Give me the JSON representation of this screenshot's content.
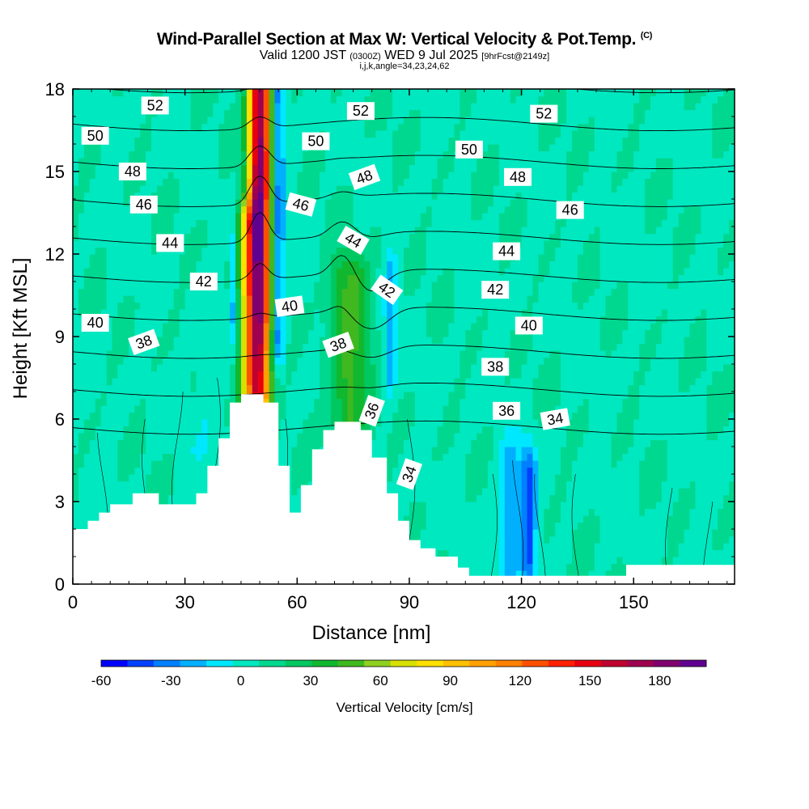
{
  "title": {
    "main": "Wind-Parallel Section at Max W: Vertical Velocity & Pot.Temp.",
    "main_mark": "(C)",
    "valid_prefix": "Valid 1200 JST",
    "valid_utc": "(0300Z)",
    "valid_date": "WED 9 Jul 2025",
    "forecast": "[9hrFcst@2149z]",
    "indices": "i,j,k,angle=34,23,24,62"
  },
  "chart_data": {
    "type": "heatmap",
    "xlabel": "Distance [nm]",
    "ylabel": "Height [Kft MSL]",
    "xlim": [
      0,
      177
    ],
    "ylim": [
      0,
      18
    ],
    "x_ticks": [
      0,
      30,
      60,
      90,
      120,
      150
    ],
    "y_ticks": [
      0,
      3,
      6,
      9,
      12,
      15,
      18
    ],
    "grid": false,
    "colorbar": {
      "label": "Vertical Velocity [cm/s]",
      "placement": "bottom",
      "range": [
        -60,
        200
      ],
      "tick_values": [
        -60,
        -30,
        0,
        30,
        60,
        90,
        120,
        150,
        180
      ],
      "colors": [
        "#0000ff",
        "#0040ff",
        "#0080ff",
        "#00b0ff",
        "#00e8ff",
        "#00e8c0",
        "#00d890",
        "#00c860",
        "#10b830",
        "#40b820",
        "#90d020",
        "#d8e000",
        "#ffe000",
        "#ffc000",
        "#ffa000",
        "#ff8000",
        "#ff5000",
        "#ff2000",
        "#e80010",
        "#c00030",
        "#a00050",
        "#800070",
        "#600090"
      ]
    },
    "terrain": [
      [
        0,
        2
      ],
      [
        4,
        2
      ],
      [
        4,
        2.3
      ],
      [
        7,
        2.3
      ],
      [
        7,
        2.6
      ],
      [
        10,
        2.6
      ],
      [
        10,
        2.9
      ],
      [
        16,
        2.9
      ],
      [
        16,
        3.3
      ],
      [
        23,
        3.3
      ],
      [
        23,
        2.9
      ],
      [
        33,
        2.9
      ],
      [
        33,
        3.3
      ],
      [
        36,
        3.3
      ],
      [
        36,
        4.3
      ],
      [
        39,
        4.3
      ],
      [
        39,
        5.3
      ],
      [
        42,
        5.3
      ],
      [
        42,
        6.6
      ],
      [
        45,
        6.6
      ],
      [
        45,
        6.9
      ],
      [
        51,
        6.9
      ],
      [
        51,
        6.6
      ],
      [
        55,
        6.6
      ],
      [
        55,
        4.3
      ],
      [
        58,
        4.3
      ],
      [
        58,
        2.6
      ],
      [
        61,
        2.6
      ],
      [
        61,
        3.6
      ],
      [
        64,
        3.6
      ],
      [
        64,
        4.9
      ],
      [
        67,
        4.9
      ],
      [
        67,
        5.6
      ],
      [
        70,
        5.6
      ],
      [
        70,
        5.9
      ],
      [
        77,
        5.9
      ],
      [
        77,
        5.6
      ],
      [
        80,
        5.6
      ],
      [
        80,
        4.6
      ],
      [
        84,
        4.6
      ],
      [
        84,
        3.3
      ],
      [
        87,
        3.3
      ],
      [
        87,
        2.3
      ],
      [
        90,
        2.3
      ],
      [
        90,
        1.6
      ],
      [
        93,
        1.6
      ],
      [
        93,
        1.3
      ],
      [
        97,
        1.3
      ],
      [
        97,
        1.0
      ],
      [
        103,
        1.0
      ],
      [
        103,
        0.6
      ],
      [
        106,
        0.6
      ],
      [
        106,
        0.3
      ],
      [
        148,
        0.3
      ],
      [
        148,
        0.7
      ],
      [
        177,
        0.7
      ],
      [
        177,
        0
      ],
      [
        0,
        0
      ]
    ],
    "w_field": {
      "units": "cm/s",
      "features": [
        {
          "name": "main-updraft",
          "x": 50,
          "x_halfwidth": 3,
          "y_range": [
            7,
            18
          ],
          "max": 175
        },
        {
          "name": "updraft-flank",
          "x": 47,
          "x_halfwidth": 3,
          "y_range": [
            7,
            13
          ],
          "max": 60
        },
        {
          "name": "downdraft-east",
          "x": 55,
          "x_halfwidth": 1.5,
          "y_range": [
            9,
            18
          ],
          "min": -45
        },
        {
          "name": "downdraft-west",
          "x": 43,
          "x_halfwidth": 1,
          "y_range": [
            10,
            12
          ],
          "min": -30
        },
        {
          "name": "secondary-updraft",
          "x": 74,
          "x_halfwidth": 5,
          "y_range": [
            6,
            11
          ],
          "max": 40
        },
        {
          "name": "downdraft-cell",
          "x": 117,
          "x_halfwidth": 3,
          "y_range": [
            1,
            4
          ],
          "min": -30
        },
        {
          "name": "downdraft-cell",
          "x": 122,
          "x_halfwidth": 2,
          "y_range": [
            1,
            4
          ],
          "min": -45
        },
        {
          "name": "downdraft-slant",
          "x": 85,
          "x_halfwidth": 1.5,
          "y_range": [
            8,
            11
          ],
          "min": -30
        },
        {
          "name": "low-level-sink",
          "x": 37,
          "x_halfwidth": 5,
          "y_range": [
            4,
            8
          ],
          "min": -8
        }
      ]
    },
    "theta_contours": [
      {
        "value": 34,
        "label": "34"
      },
      {
        "value": 36,
        "label": "36"
      },
      {
        "value": 38,
        "label": "38"
      },
      {
        "value": 40,
        "label": "40"
      },
      {
        "value": 42,
        "label": "42"
      },
      {
        "value": 44,
        "label": "44"
      },
      {
        "value": 46,
        "label": "46"
      },
      {
        "value": 48,
        "label": "48"
      },
      {
        "value": 50,
        "label": "50"
      },
      {
        "value": 52,
        "label": "52"
      }
    ],
    "contour_labels": [
      {
        "text": "52",
        "x": 22,
        "y": 17.4,
        "angle": 0
      },
      {
        "text": "52",
        "x": 77,
        "y": 17.2,
        "angle": 0
      },
      {
        "text": "52",
        "x": 126,
        "y": 17.1,
        "angle": 0
      },
      {
        "text": "50",
        "x": 6,
        "y": 16.3,
        "angle": 0
      },
      {
        "text": "50",
        "x": 65,
        "y": 16.1,
        "angle": 0
      },
      {
        "text": "50",
        "x": 106,
        "y": 15.8,
        "angle": 0
      },
      {
        "text": "48",
        "x": 16,
        "y": 15.0,
        "angle": 0
      },
      {
        "text": "48",
        "x": 78,
        "y": 14.8,
        "angle": -20
      },
      {
        "text": "48",
        "x": 119,
        "y": 14.8,
        "angle": 0
      },
      {
        "text": "46",
        "x": 19,
        "y": 13.8,
        "angle": 0
      },
      {
        "text": "46",
        "x": 61,
        "y": 13.8,
        "angle": 15
      },
      {
        "text": "46",
        "x": 133,
        "y": 13.6,
        "angle": 0
      },
      {
        "text": "44",
        "x": 26,
        "y": 12.4,
        "angle": 0
      },
      {
        "text": "44",
        "x": 75,
        "y": 12.5,
        "angle": 30
      },
      {
        "text": "44",
        "x": 116,
        "y": 12.1,
        "angle": 0
      },
      {
        "text": "42",
        "x": 35,
        "y": 11.0,
        "angle": 0
      },
      {
        "text": "42",
        "x": 84,
        "y": 10.7,
        "angle": 35
      },
      {
        "text": "42",
        "x": 113,
        "y": 10.7,
        "angle": 0
      },
      {
        "text": "40",
        "x": 6,
        "y": 9.5,
        "angle": 0
      },
      {
        "text": "40",
        "x": 58,
        "y": 10.1,
        "angle": -8
      },
      {
        "text": "40",
        "x": 122,
        "y": 9.4,
        "angle": 0
      },
      {
        "text": "38",
        "x": 19,
        "y": 8.8,
        "angle": -20
      },
      {
        "text": "38",
        "x": 71,
        "y": 8.7,
        "angle": -20
      },
      {
        "text": "38",
        "x": 113,
        "y": 7.9,
        "angle": 0
      },
      {
        "text": "36",
        "x": 80,
        "y": 6.3,
        "angle": -70
      },
      {
        "text": "36",
        "x": 116,
        "y": 6.3,
        "angle": 0
      },
      {
        "text": "34",
        "x": 90,
        "y": 4.0,
        "angle": -70
      },
      {
        "text": "34",
        "x": 129,
        "y": 6.0,
        "angle": -10
      }
    ]
  }
}
